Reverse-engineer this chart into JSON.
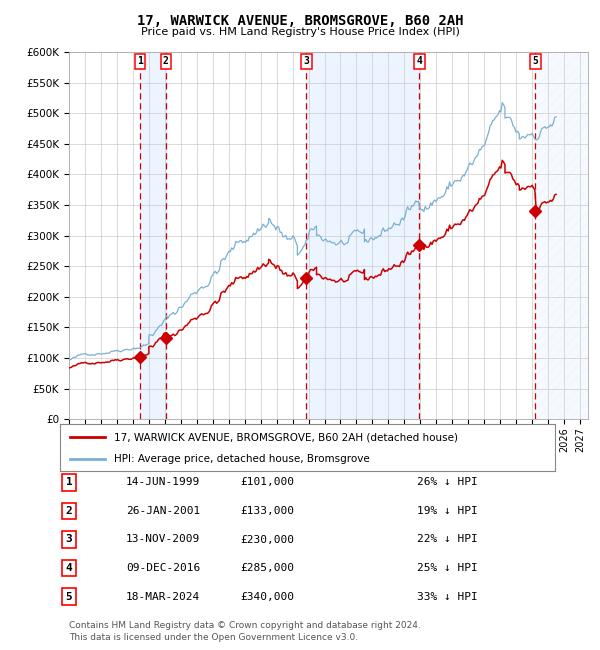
{
  "title": "17, WARWICK AVENUE, BROMSGROVE, B60 2AH",
  "subtitle": "Price paid vs. HM Land Registry's House Price Index (HPI)",
  "legend_property": "17, WARWICK AVENUE, BROMSGROVE, B60 2AH (detached house)",
  "legend_hpi": "HPI: Average price, detached house, Bromsgrove",
  "ylim": [
    0,
    600000
  ],
  "xlim_start": 1995.0,
  "xlim_end": 2027.5,
  "property_color": "#cc0000",
  "hpi_color": "#7ab0d4",
  "footnote1": "Contains HM Land Registry data © Crown copyright and database right 2024.",
  "footnote2": "This data is licensed under the Open Government Licence v3.0.",
  "sales": [
    {
      "num": 1,
      "date_str": "14-JUN-1999",
      "year": 1999.45,
      "price": 101000,
      "pct": "26%",
      "label": "£101,000"
    },
    {
      "num": 2,
      "date_str": "26-JAN-2001",
      "year": 2001.07,
      "price": 133000,
      "pct": "19%",
      "label": "£133,000"
    },
    {
      "num": 3,
      "date_str": "13-NOV-2009",
      "year": 2009.87,
      "price": 230000,
      "pct": "22%",
      "label": "£230,000"
    },
    {
      "num": 4,
      "date_str": "09-DEC-2016",
      "year": 2016.94,
      "price": 285000,
      "pct": "25%",
      "label": "£285,000"
    },
    {
      "num": 5,
      "date_str": "18-MAR-2024",
      "year": 2024.21,
      "price": 340000,
      "pct": "33%",
      "label": "£340,000"
    }
  ],
  "background_color": "#ffffff",
  "grid_color": "#cccccc",
  "shade_color": "#ddeeff"
}
